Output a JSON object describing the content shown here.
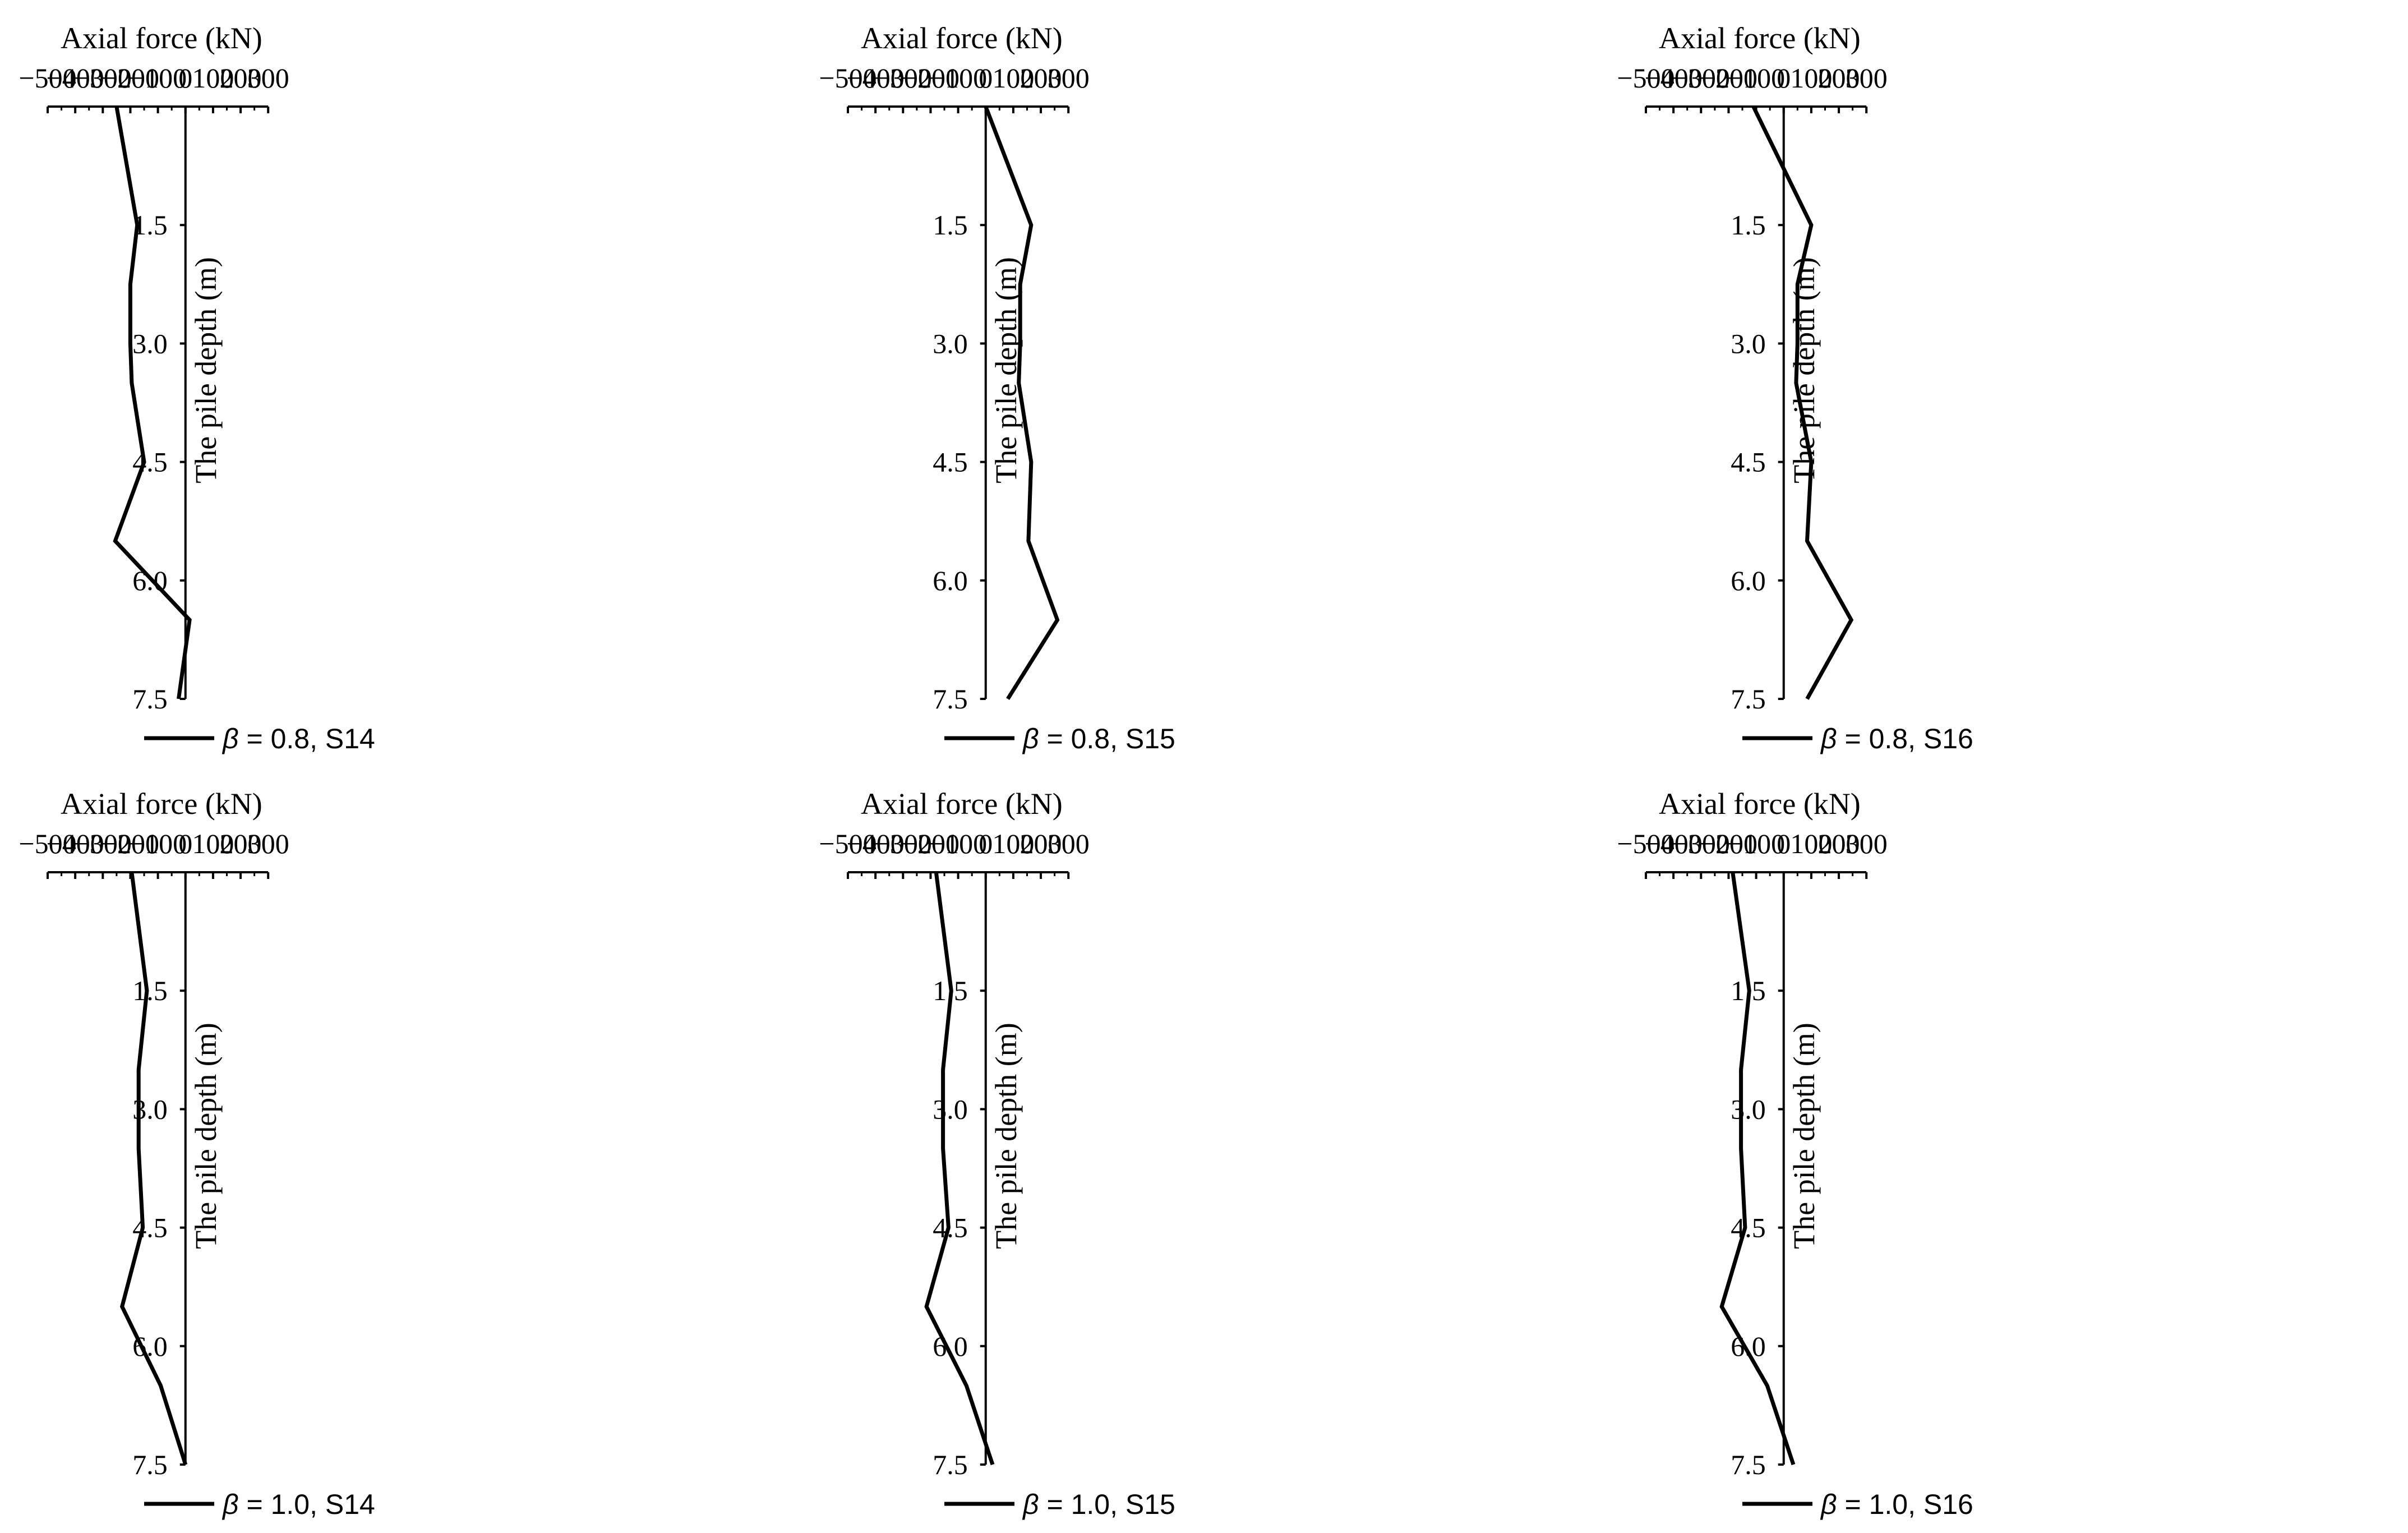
{
  "chart_data": [
    {
      "type": "line",
      "xlabel": "Axial force (kN)",
      "ylabel": "The pile depth (m)",
      "xlim": [
        -500,
        300
      ],
      "ylim": [
        0,
        7.5
      ],
      "x_ticks": [
        "−500",
        "−400",
        "−300",
        "−200",
        "−100",
        "0",
        "100",
        "200",
        "300"
      ],
      "y_ticks": [
        "1.5",
        "3.0",
        "4.5",
        "6.0",
        "7.5"
      ],
      "y_inverted": true,
      "legend_position": "bottom",
      "series": [
        {
          "name": "β = 0.8, S14",
          "legend_symbol": "β",
          "legend_rest": " = 0.8, S14",
          "points": [
            [
              -250,
              0
            ],
            [
              -175,
              1.5
            ],
            [
              -200,
              2.25
            ],
            [
              -200,
              3.0
            ],
            [
              -195,
              3.5
            ],
            [
              -150,
              4.5
            ],
            [
              -255,
              5.5
            ],
            [
              15,
              6.5
            ],
            [
              -25,
              7.5
            ]
          ]
        }
      ]
    },
    {
      "type": "line",
      "xlabel": "Axial force (kN)",
      "ylabel": "The pile depth (m)",
      "xlim": [
        -500,
        300
      ],
      "ylim": [
        0,
        7.5
      ],
      "x_ticks": [
        "−500",
        "−400",
        "−300",
        "−200",
        "−100",
        "0",
        "100",
        "200",
        "300"
      ],
      "y_ticks": [
        "1.5",
        "3.0",
        "4.5",
        "6.0",
        "7.5"
      ],
      "y_inverted": true,
      "legend_position": "bottom",
      "series": [
        {
          "name": "β = 0.8, S15",
          "legend_symbol": "β",
          "legend_rest": " = 0.8, S15",
          "points": [
            [
              0,
              0
            ],
            [
              165,
              1.5
            ],
            [
              125,
              2.25
            ],
            [
              125,
              3.0
            ],
            [
              120,
              3.5
            ],
            [
              165,
              4.5
            ],
            [
              155,
              5.5
            ],
            [
              260,
              6.5
            ],
            [
              80,
              7.5
            ]
          ]
        }
      ]
    },
    {
      "type": "line",
      "xlabel": "Axial force (kN)",
      "ylabel": "The pile depth (m)",
      "xlim": [
        -500,
        300
      ],
      "ylim": [
        0,
        7.5
      ],
      "x_ticks": [
        "−500",
        "−400",
        "−300",
        "−200",
        "−100",
        "0",
        "100",
        "200",
        "300"
      ],
      "y_ticks": [
        "1.5",
        "3.0",
        "4.5",
        "6.0",
        "7.5"
      ],
      "y_inverted": true,
      "legend_position": "bottom",
      "series": [
        {
          "name": "β = 0.8, S16",
          "legend_symbol": "β",
          "legend_rest": " = 0.8, S16",
          "points": [
            [
              -110,
              0
            ],
            [
              100,
              1.5
            ],
            [
              50,
              2.25
            ],
            [
              50,
              3.0
            ],
            [
              45,
              3.5
            ],
            [
              100,
              4.5
            ],
            [
              85,
              5.5
            ],
            [
              245,
              6.5
            ],
            [
              85,
              7.5
            ]
          ]
        }
      ]
    },
    {
      "type": "line",
      "xlabel": "Axial force (kN)",
      "ylabel": "The pile depth (m)",
      "xlim": [
        -500,
        300
      ],
      "ylim": [
        0,
        7.5
      ],
      "x_ticks": [
        "−500",
        "−400",
        "−300",
        "−200",
        "−100",
        "0",
        "100",
        "200",
        "300"
      ],
      "y_ticks": [
        "1.5",
        "3.0",
        "4.5",
        "6.0",
        "7.5"
      ],
      "y_inverted": true,
      "legend_position": "bottom",
      "series": [
        {
          "name": "β = 1.0, S14",
          "legend_symbol": "β",
          "legend_rest": " = 1.0, S14",
          "points": [
            [
              -195,
              0
            ],
            [
              -140,
              1.5
            ],
            [
              -170,
              2.5
            ],
            [
              -170,
              3.5
            ],
            [
              -155,
              4.5
            ],
            [
              -230,
              5.5
            ],
            [
              -90,
              6.5
            ],
            [
              0,
              7.5
            ]
          ]
        }
      ]
    },
    {
      "type": "line",
      "xlabel": "Axial force (kN)",
      "ylabel": "The pile depth (m)",
      "xlim": [
        -500,
        300
      ],
      "ylim": [
        0,
        7.5
      ],
      "x_ticks": [
        "−500",
        "−400",
        "−300",
        "−200",
        "−100",
        "0",
        "100",
        "200",
        "300"
      ],
      "y_ticks": [
        "1.5",
        "3.0",
        "4.5",
        "6.0",
        "7.5"
      ],
      "y_inverted": true,
      "legend_position": "bottom",
      "series": [
        {
          "name": "β = 1.0, S15",
          "legend_symbol": "β",
          "legend_rest": " = 1.0, S15",
          "points": [
            [
              -180,
              0
            ],
            [
              -125,
              1.5
            ],
            [
              -155,
              2.5
            ],
            [
              -155,
              3.5
            ],
            [
              -135,
              4.5
            ],
            [
              -215,
              5.5
            ],
            [
              -70,
              6.5
            ],
            [
              25,
              7.5
            ]
          ]
        }
      ]
    },
    {
      "type": "line",
      "xlabel": "Axial force (kN)",
      "ylabel": "The pile depth (m)",
      "xlim": [
        -500,
        300
      ],
      "ylim": [
        0,
        7.5
      ],
      "x_ticks": [
        "−500",
        "−400",
        "−300",
        "−200",
        "−100",
        "0",
        "100",
        "200",
        "300"
      ],
      "y_ticks": [
        "1.5",
        "3.0",
        "4.5",
        "6.0",
        "7.5"
      ],
      "y_inverted": true,
      "legend_position": "bottom",
      "series": [
        {
          "name": "β = 1.0, S16",
          "legend_symbol": "β",
          "legend_rest": " = 1.0, S16",
          "points": [
            [
              -185,
              0
            ],
            [
              -125,
              1.5
            ],
            [
              -155,
              2.5
            ],
            [
              -155,
              3.5
            ],
            [
              -140,
              4.5
            ],
            [
              -225,
              5.5
            ],
            [
              -60,
              6.5
            ],
            [
              35,
              7.5
            ]
          ]
        }
      ]
    }
  ],
  "colors": {
    "line": "#000000",
    "axis": "#000000",
    "background": "#ffffff"
  }
}
